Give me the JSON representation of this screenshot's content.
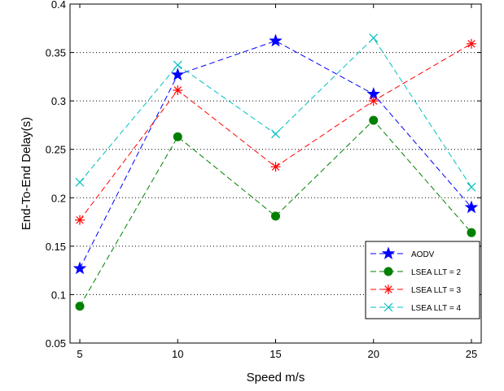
{
  "chart_data": {
    "type": "line",
    "title": "",
    "xlabel": "Speed m/s",
    "ylabel": "End-To-End Delay(s)",
    "x": [
      5,
      10,
      15,
      20,
      25
    ],
    "xlim": [
      4.5,
      25.5
    ],
    "ylim": [
      0.05,
      0.4
    ],
    "xticks": [
      5,
      10,
      15,
      20,
      25
    ],
    "xtick_labels": [
      "5",
      "10",
      "15",
      "20",
      "25"
    ],
    "yticks": [
      0.05,
      0.1,
      0.15,
      0.2,
      0.25,
      0.3,
      0.35,
      0.4
    ],
    "ytick_labels": [
      "0.05",
      "0.1",
      "0.15",
      "0.2",
      "0.25",
      "0.3",
      "0.35",
      "0.4"
    ],
    "grid": "horizontal dotted",
    "legend_position": "lower-right",
    "series": [
      {
        "name": "AODV",
        "color": "#0000ff",
        "marker": "star",
        "values": [
          0.127,
          0.327,
          0.362,
          0.307,
          0.19
        ]
      },
      {
        "name": "LSEA LLT = 2",
        "color": "#008000",
        "marker": "circle",
        "values": [
          0.088,
          0.263,
          0.181,
          0.28,
          0.164
        ]
      },
      {
        "name": "LSEA LLT = 3",
        "color": "#ff0000",
        "marker": "asterisk",
        "values": [
          0.177,
          0.311,
          0.232,
          0.3,
          0.359
        ]
      },
      {
        "name": "LSEA LLT = 4",
        "color": "#00bfbf",
        "marker": "x",
        "values": [
          0.216,
          0.337,
          0.266,
          0.365,
          0.211
        ]
      }
    ]
  }
}
